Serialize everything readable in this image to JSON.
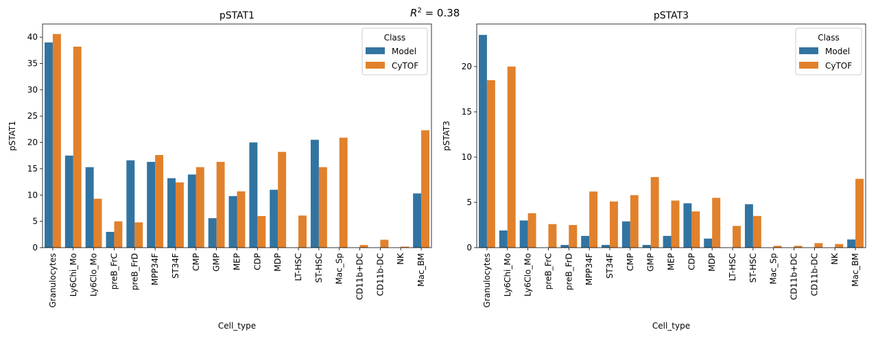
{
  "figure": {
    "r2_label": "0.38"
  },
  "chart_data": [
    {
      "type": "bar",
      "title": "pSTAT1",
      "xlabel": "Cell_type",
      "ylabel": "pSTAT1",
      "ylim": [
        0,
        42.5
      ],
      "yticks": [
        0,
        5,
        10,
        15,
        20,
        25,
        30,
        35,
        40
      ],
      "legend": {
        "title": "Class",
        "placement": "top-right"
      },
      "categories": [
        "Granulocytes",
        "Ly6Chi_Mo",
        "Ly6Clo_Mo",
        "preB_FrC",
        "preB_FrD",
        "MPP34F",
        "ST34F",
        "CMP",
        "GMP",
        "MEP",
        "CDP",
        "MDP",
        "LT-HSC",
        "ST-HSC",
        "Mac_Sp",
        "CD11b+DC",
        "CD11b-DC",
        "NK",
        "Mac_BM"
      ],
      "series": [
        {
          "name": "Model",
          "color": "#3274a1",
          "values": [
            39.0,
            17.5,
            15.3,
            3.0,
            16.6,
            16.3,
            13.2,
            13.9,
            5.6,
            9.8,
            20.0,
            11.0,
            0,
            20.5,
            0,
            0,
            0,
            0,
            10.3
          ]
        },
        {
          "name": "CyTOF",
          "color": "#e1812c",
          "values": [
            40.6,
            38.2,
            9.3,
            5.0,
            4.8,
            17.6,
            12.4,
            15.3,
            16.3,
            10.7,
            6.0,
            18.2,
            6.1,
            15.3,
            20.9,
            0.5,
            1.5,
            0.2,
            22.3
          ]
        }
      ]
    },
    {
      "type": "bar",
      "title": "pSTAT3",
      "xlabel": "Cell_type",
      "ylabel": "pSTAT3",
      "ylim": [
        0,
        24.7
      ],
      "yticks": [
        0,
        5,
        10,
        15,
        20
      ],
      "legend": {
        "title": "Class",
        "placement": "top-right"
      },
      "categories": [
        "Granulocytes",
        "Ly6Chi_Mo",
        "Ly6Clo_Mo",
        "preB_FrC",
        "preB_FrD",
        "MPP34F",
        "ST34F",
        "CMP",
        "GMP",
        "MEP",
        "CDP",
        "MDP",
        "LT-HSC",
        "ST-HSC",
        "Mac_Sp",
        "CD11b+DC",
        "CD11b-DC",
        "NK",
        "Mac_BM"
      ],
      "series": [
        {
          "name": "Model",
          "color": "#3274a1",
          "values": [
            23.5,
            1.9,
            3.0,
            0,
            0.3,
            1.3,
            0.3,
            2.9,
            0.3,
            1.3,
            4.9,
            1.0,
            0,
            4.8,
            0,
            0,
            0,
            0,
            0.9
          ]
        },
        {
          "name": "CyTOF",
          "color": "#e1812c",
          "values": [
            18.5,
            20.0,
            3.8,
            2.6,
            2.5,
            6.2,
            5.1,
            5.8,
            7.8,
            5.2,
            4.0,
            5.5,
            2.4,
            3.5,
            0.2,
            0.2,
            0.5,
            0.4,
            7.6
          ]
        }
      ]
    }
  ]
}
